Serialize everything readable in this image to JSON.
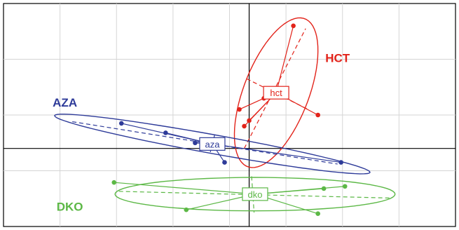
{
  "chart_data": {
    "type": "scatter",
    "grid": true,
    "axes_lines": true,
    "xlim": [
      -5,
      4.2
    ],
    "ylim": [
      -1.4,
      2.6
    ],
    "groups": [
      {
        "label": "HCT",
        "box_label": "hct",
        "color": "#e2231a",
        "label_pos": [
          1.8,
          1.55
        ],
        "box_pos": [
          0.55,
          1.0
        ],
        "center": [
          0.55,
          1.0
        ],
        "points": [
          [
            0.9,
            2.2
          ],
          [
            0.0,
            0.5
          ],
          [
            -0.1,
            0.4
          ],
          [
            0.3,
            0.9
          ],
          [
            1.4,
            0.6
          ],
          [
            -0.2,
            0.7
          ]
        ],
        "ellipse": {
          "rx": 1.45,
          "ry": 0.65,
          "angle_deg": 65
        },
        "axis_a": [
          [
            -0.1,
            0.0
          ],
          [
            1.15,
            2.15
          ]
        ],
        "axis_b": [
          [
            -0.05,
            1.25
          ],
          [
            1.2,
            0.7
          ]
        ]
      },
      {
        "label": "AZA",
        "box_label": "aza",
        "color": "#2e3b99",
        "label_pos": [
          -3.75,
          0.75
        ],
        "box_pos": [
          -0.75,
          0.08
        ],
        "center": [
          -0.75,
          0.08
        ],
        "points": [
          [
            -2.6,
            0.45
          ],
          [
            -1.7,
            0.28
          ],
          [
            -0.5,
            -0.25
          ],
          [
            1.87,
            -0.25
          ],
          [
            -1.1,
            0.1
          ]
        ],
        "ellipse": {
          "rx": 3.25,
          "ry": 0.17,
          "angle_deg": -9
        },
        "axis_a": [
          [
            -3.6,
            0.48
          ],
          [
            1.8,
            -0.28
          ]
        ],
        "axis_b": [
          [
            -0.7,
            0.25
          ],
          [
            -0.8,
            -0.1
          ]
        ]
      },
      {
        "label": "DKO",
        "box_label": "dko",
        "color": "#5cb846",
        "label_pos": [
          -3.65,
          -1.12
        ],
        "box_pos": [
          0.12,
          -0.82
        ],
        "center": [
          0.12,
          -0.82
        ],
        "points": [
          [
            -2.75,
            -0.61
          ],
          [
            -1.28,
            -1.1
          ],
          [
            1.52,
            -0.72
          ],
          [
            1.95,
            -0.68
          ],
          [
            1.4,
            -1.17
          ]
        ],
        "ellipse": {
          "rx": 2.85,
          "ry": 0.3,
          "angle_deg": 0
        },
        "axis_a": [
          [
            -2.65,
            -0.77
          ],
          [
            2.9,
            -0.89
          ]
        ],
        "axis_b": [
          [
            0.05,
            -0.5
          ],
          [
            0.1,
            -1.15
          ]
        ]
      }
    ]
  }
}
